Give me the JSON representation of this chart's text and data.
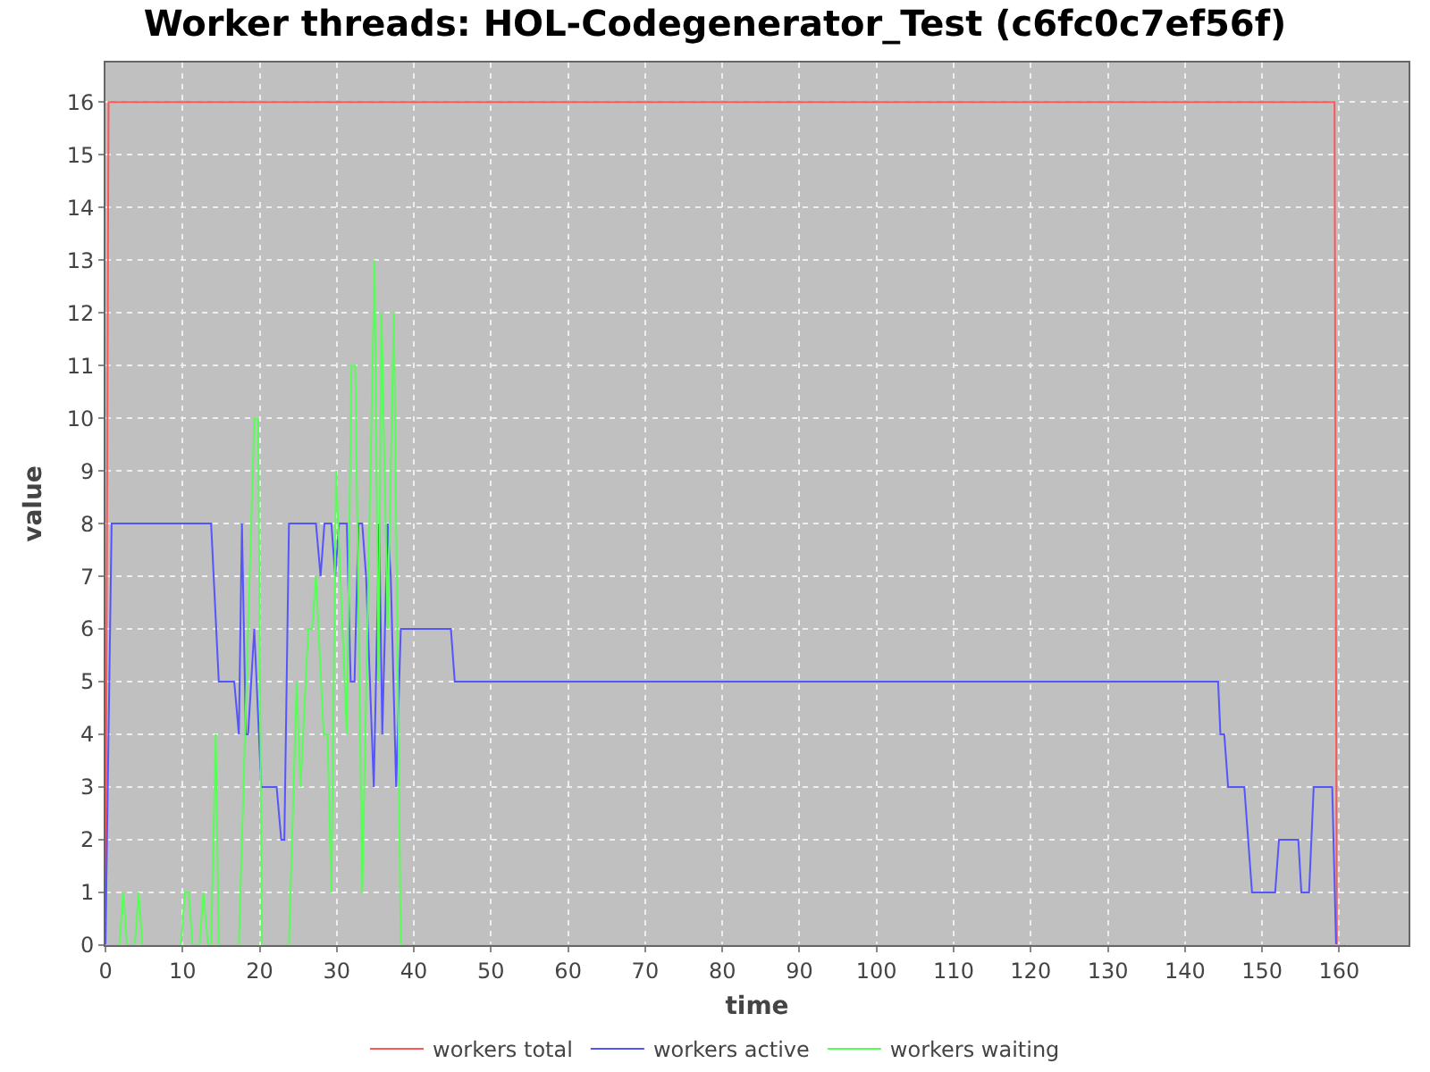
{
  "chart_data": {
    "type": "line",
    "title": "Worker threads: HOL-Codegenerator_Test (c6fc0c7ef56f)",
    "xlabel": "time",
    "ylabel": "value",
    "xlim": [
      0,
      169
    ],
    "ylim": [
      0,
      16.75
    ],
    "xticks": [
      0,
      10,
      20,
      30,
      40,
      50,
      60,
      70,
      80,
      90,
      100,
      110,
      120,
      130,
      140,
      150,
      160
    ],
    "yticks": [
      0,
      1,
      2,
      3,
      4,
      5,
      6,
      7,
      8,
      9,
      10,
      11,
      12,
      13,
      14,
      15,
      16
    ],
    "grid": true,
    "legend": "bottom",
    "marker": "none",
    "line_style": "solid",
    "series": [
      {
        "name": "workers total",
        "color": "#ff5555",
        "x": [
          0,
          0.4,
          159.4,
          159.7,
          160.7
        ],
        "values": [
          0,
          16,
          16,
          0,
          0
        ]
      },
      {
        "name": "workers active",
        "color": "#5555ff",
        "x": [
          0,
          0.8,
          13.7,
          14.7,
          16.7,
          17.3,
          17.7,
          18.2,
          18.5,
          19.3,
          20.2,
          22.2,
          22.8,
          23.2,
          23.8,
          27.3,
          27.9,
          28.4,
          29.3,
          29.8,
          30.3,
          31.3,
          31.8,
          32.3,
          32.8,
          33.3,
          33.8,
          34.8,
          35.5,
          35.9,
          36.6,
          37.0,
          37.7,
          38.3,
          44.8,
          45.3,
          144.3,
          144.6,
          145.1,
          145.6,
          147.7,
          148.7,
          151.7,
          152.2,
          154.7,
          155.1,
          156.1,
          156.7,
          159.1,
          159.6,
          160.7
        ],
        "values": [
          0,
          8,
          8,
          5,
          5,
          4,
          8,
          4,
          4,
          6,
          3,
          3,
          2,
          2,
          8,
          8,
          7,
          8,
          8,
          7,
          8,
          8,
          5,
          5,
          8,
          8,
          7,
          3,
          8,
          4,
          8,
          7,
          3,
          6,
          6,
          5,
          5,
          4,
          4,
          3,
          3,
          1,
          1,
          2,
          2,
          1,
          1,
          3,
          3,
          0,
          0
        ]
      },
      {
        "name": "workers waiting",
        "color": "#55ff55",
        "x": [
          0,
          1.8,
          2.3,
          2.8,
          3.8,
          4.3,
          4.8,
          9.8,
          10.3,
          10.8,
          11.3,
          12.2,
          12.7,
          13.3,
          13.7,
          14.3,
          14.7,
          17.3,
          19.3,
          19.8,
          20.3,
          23.8,
          24.8,
          25.3,
          26.3,
          26.8,
          27.3,
          28.3,
          28.8,
          29.3,
          29.9,
          31.3,
          31.9,
          32.4,
          33.3,
          34.9,
          35.4,
          35.8,
          36.6,
          37.4,
          38.3,
          160.7
        ],
        "values": [
          0,
          0,
          1,
          0,
          0,
          1,
          0,
          0,
          1,
          1,
          0,
          0,
          1,
          0,
          0,
          4,
          0,
          0,
          10,
          10,
          0,
          0,
          5,
          3,
          6,
          6,
          7,
          4,
          4,
          1,
          9,
          4,
          11,
          11,
          1,
          13,
          5,
          12,
          6,
          12,
          0,
          0
        ]
      }
    ]
  }
}
